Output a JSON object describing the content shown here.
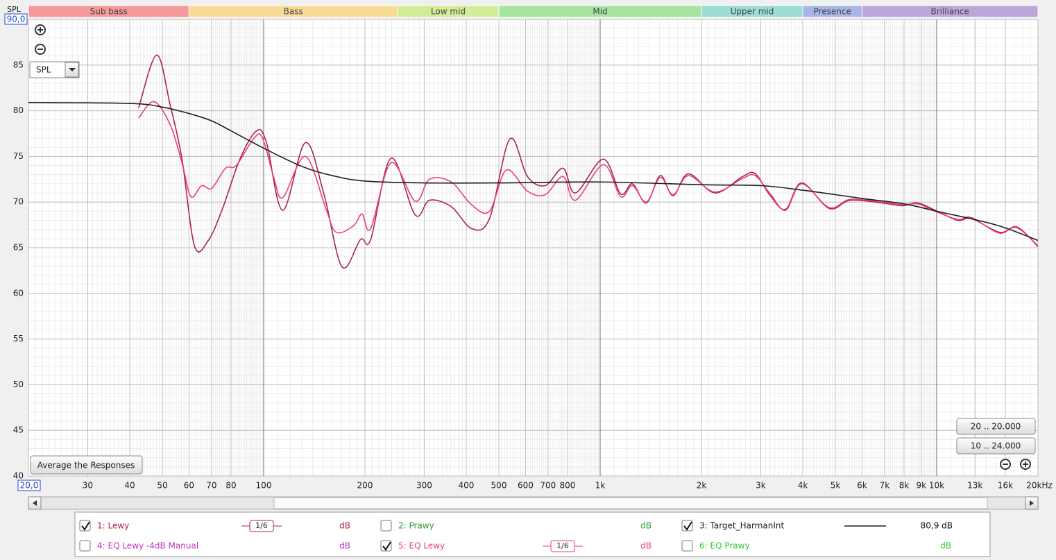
{
  "chart_data": {
    "type": "line",
    "y_label": "SPL",
    "x_log": true,
    "grid": true,
    "xlim": [
      20,
      20000
    ],
    "ylim": [
      40,
      90
    ],
    "xticks": [
      {
        "value": 20,
        "label": "20,0"
      },
      30,
      40,
      50,
      60,
      70,
      80,
      100,
      200,
      300,
      400,
      500,
      600,
      700,
      800,
      {
        "value": 1000,
        "label": "1k"
      },
      {
        "value": 2000,
        "label": "2k"
      },
      {
        "value": 3000,
        "label": "3k"
      },
      {
        "value": 4000,
        "label": "4k"
      },
      {
        "value": 5000,
        "label": "5k"
      },
      {
        "value": 6000,
        "label": "6k"
      },
      {
        "value": 7000,
        "label": "7k"
      },
      {
        "value": 8000,
        "label": "8k"
      },
      {
        "value": 9000,
        "label": "9k"
      },
      {
        "value": 10000,
        "label": "10k"
      },
      {
        "value": 13000,
        "label": "13k"
      },
      {
        "value": 16000,
        "label": "16k"
      },
      {
        "value": 20000,
        "label": "20kHz"
      }
    ],
    "yticks": [
      40,
      45,
      50,
      55,
      60,
      65,
      70,
      75,
      80,
      85,
      {
        "value": 90,
        "label": "90,0"
      }
    ],
    "bands": [
      {
        "name": "Sub bass",
        "from": 20,
        "to": 60,
        "color": "#f7999a"
      },
      {
        "name": "Bass",
        "from": 60,
        "to": 250,
        "color": "#f8dc96"
      },
      {
        "name": "Low mid",
        "from": 250,
        "to": 500,
        "color": "#d3ec98"
      },
      {
        "name": "Mid",
        "from": 500,
        "to": 2000,
        "color": "#a7e4a0"
      },
      {
        "name": "Upper mid",
        "from": 2000,
        "to": 4000,
        "color": "#9edcd6"
      },
      {
        "name": "Presence",
        "from": 4000,
        "to": 6000,
        "color": "#a8b6e6"
      },
      {
        "name": "Brilliance",
        "from": 6000,
        "to": 20000,
        "color": "#bfa6d9"
      }
    ],
    "series": [
      {
        "name": "1: Lewy",
        "color": "#a8234f",
        "checked": true,
        "smoothing": "1/6",
        "unit": "dB",
        "x": [
          42.5,
          48.1,
          52.7,
          57.2,
          62.3,
          68.5,
          75.5,
          85,
          95.3,
          102,
          114,
          133,
          151,
          171,
          194,
          208,
          239,
          282,
          311,
          361,
          415,
          469,
          539,
          608,
          686,
          776,
          845,
          1022,
          1150,
          1247,
          1372,
          1509,
          1647,
          1830,
          2194,
          2652,
          2889,
          3203,
          3557,
          3969,
          4795,
          5538,
          6870,
          7920,
          8790,
          10030,
          11560,
          12700,
          15360,
          17310,
          20000
        ],
        "values": [
          80.3,
          86.1,
          80.7,
          74.7,
          65.2,
          65.8,
          69.3,
          74.7,
          77.8,
          76.5,
          69.1,
          76.5,
          70.9,
          62.9,
          65.9,
          65.9,
          74.8,
          68.6,
          70.2,
          69.5,
          67.1,
          68.2,
          76.9,
          72.8,
          71.8,
          73.7,
          71.0,
          74.7,
          70.9,
          72.0,
          69.9,
          72.9,
          70.7,
          73.1,
          71.0,
          72.8,
          73.1,
          70.7,
          69.2,
          72.1,
          69.3,
          70.2,
          69.9,
          69.6,
          69.9,
          69.0,
          68.0,
          68.2,
          66.7,
          67.2,
          65.2
        ]
      },
      {
        "name": "5: EQ Lewy",
        "color": "#ee3b82",
        "checked": true,
        "smoothing": "1/6",
        "unit": "dB",
        "x": [
          42.5,
          47.2,
          52.7,
          57.2,
          60.8,
          65.4,
          70.1,
          77.0,
          82.9,
          93.2,
          99,
          107,
          114,
          133,
          153,
          164,
          185,
          196,
          208,
          239,
          282,
          311,
          361,
          415,
          469,
          526,
          608,
          686,
          776,
          845,
          1022,
          1150,
          1247,
          1372,
          1509,
          1647,
          1830,
          2194,
          2652,
          2889,
          3203,
          3557,
          3969,
          4795,
          5538,
          6870,
          7920,
          8790,
          10030,
          11560,
          12700,
          15360,
          17310,
          20000
        ],
        "values": [
          79.2,
          81.0,
          78.5,
          74.3,
          70.6,
          71.8,
          71.5,
          73.7,
          74.0,
          76.9,
          77.1,
          72.8,
          70.5,
          75.0,
          69.3,
          66.7,
          67.4,
          68.7,
          67.1,
          74.3,
          70.1,
          72.5,
          72.2,
          69.7,
          69.0,
          73.5,
          71.2,
          70.8,
          72.8,
          70.2,
          74.1,
          70.6,
          71.8,
          70.0,
          72.7,
          70.8,
          72.9,
          71.1,
          72.6,
          72.9,
          70.9,
          69.1,
          72.0,
          69.4,
          70.3,
          70.0,
          69.7,
          69.8,
          68.9,
          68.1,
          68.3,
          66.6,
          67.3,
          65.1
        ]
      },
      {
        "name": "3: Target_HarmanInt",
        "color": "#1e1e1e",
        "checked": true,
        "level": "80,9 dB",
        "x": [
          20,
          40,
          50,
          60,
          70,
          80,
          100,
          130,
          160,
          200,
          300,
          500,
          1000,
          2000,
          3000,
          4000,
          6000,
          8000,
          10000,
          15000,
          20000
        ],
        "values": [
          80.9,
          80.8,
          80.4,
          79.7,
          78.9,
          77.8,
          75.9,
          73.9,
          72.9,
          72.3,
          72.1,
          72.1,
          72.2,
          71.9,
          71.8,
          71.3,
          70.4,
          69.8,
          69.0,
          67.5,
          65.8
        ]
      }
    ],
    "hidden_traces": [
      {
        "name": "2: Prawy",
        "color": "#2e9a2e",
        "checked": false,
        "unit": "dB"
      },
      {
        "name": "4: EQ Lewy -4dB Manual",
        "color": "#c232c2",
        "checked": false,
        "unit": "dB"
      },
      {
        "name": "6: EQ Prawy",
        "color": "#33c433",
        "checked": false,
        "unit": "dB"
      }
    ]
  },
  "controls": {
    "dropdown": "SPL",
    "average_button": "Average the Responses",
    "range_buttons": [
      "20 .. 20.000",
      "10 .. 24.000"
    ]
  }
}
